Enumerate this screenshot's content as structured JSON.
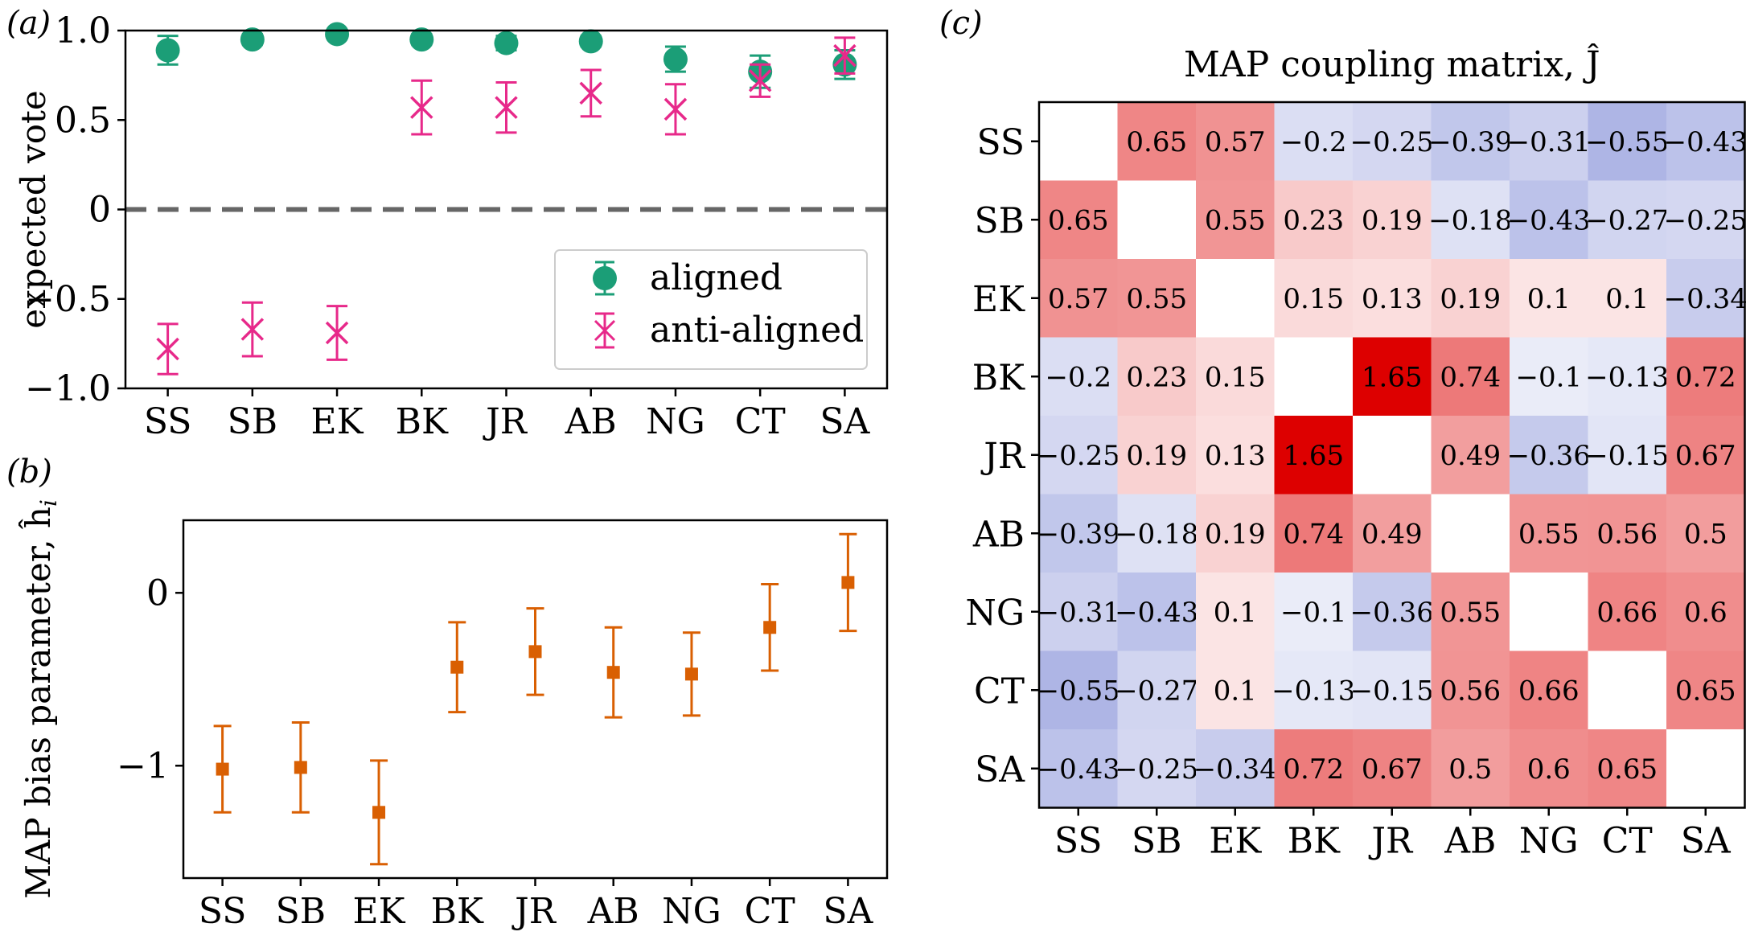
{
  "colors": {
    "aligned": "#1b9e77",
    "anti": "#e7298a",
    "bias": "#d95f02",
    "zero_line": "#666666",
    "neg": "#3b4cc0",
    "pos": "#dd0000"
  },
  "panels": {
    "a_tag": "(a)",
    "b_tag": "(b)",
    "c_tag": "(c)"
  },
  "chart_data": [
    {
      "id": "a",
      "type": "scatter",
      "title": "",
      "xlabel": "",
      "ylabel": "expected vote",
      "categories": [
        "SS",
        "SB",
        "EK",
        "BK",
        "JR",
        "AB",
        "NG",
        "CT",
        "SA"
      ],
      "ylim": [
        -1.0,
        1.0
      ],
      "yticks": [
        -1.0,
        -0.5,
        0,
        0.5,
        1.0
      ],
      "ytick_labels": [
        "−1.0",
        "−0.5",
        "0",
        "0.5",
        "1.0"
      ],
      "reference_line": 0,
      "legend": {
        "position": "right",
        "entries": [
          "aligned",
          "anti-aligned"
        ]
      },
      "series": [
        {
          "name": "aligned",
          "marker": "circle",
          "values": [
            0.89,
            0.95,
            0.98,
            0.95,
            0.93,
            0.94,
            0.84,
            0.77,
            0.81
          ],
          "err": [
            0.08,
            0.03,
            0.01,
            0.03,
            0.04,
            0.03,
            0.07,
            0.09,
            0.08
          ]
        },
        {
          "name": "anti-aligned",
          "marker": "x",
          "values": [
            -0.78,
            -0.67,
            -0.69,
            0.57,
            0.57,
            0.65,
            0.56,
            0.72,
            0.86
          ],
          "err": [
            0.14,
            0.15,
            0.15,
            0.15,
            0.14,
            0.13,
            0.14,
            0.09,
            0.1
          ]
        }
      ]
    },
    {
      "id": "b",
      "type": "scatter",
      "title": "",
      "xlabel": "",
      "ylabel": "MAP bias parameter, ĥ",
      "ylabel_sub": "i",
      "categories": [
        "SS",
        "SB",
        "EK",
        "BK",
        "JR",
        "AB",
        "NG",
        "CT",
        "SA"
      ],
      "ylim": [
        -1.65,
        0.42
      ],
      "yticks": [
        -1,
        0
      ],
      "ytick_labels": [
        "−1",
        "0"
      ],
      "series": [
        {
          "name": "MAP bias",
          "marker": "square",
          "values": [
            -1.02,
            -1.01,
            -1.27,
            -0.43,
            -0.34,
            -0.46,
            -0.47,
            -0.2,
            0.06
          ],
          "err": [
            0.25,
            0.26,
            0.3,
            0.26,
            0.25,
            0.26,
            0.24,
            0.25,
            0.28
          ]
        }
      ]
    },
    {
      "id": "c",
      "type": "heatmap",
      "title": "MAP coupling matrix, Ĵ",
      "xlabel": "",
      "ylabel": "",
      "categories": [
        "SS",
        "SB",
        "EK",
        "BK",
        "JR",
        "AB",
        "NG",
        "CT",
        "SA"
      ],
      "color_range": [
        -1.65,
        1.65
      ],
      "values": [
        [
          null,
          0.65,
          0.57,
          -0.2,
          -0.25,
          -0.39,
          -0.31,
          -0.55,
          -0.43
        ],
        [
          0.65,
          null,
          0.55,
          0.23,
          0.19,
          -0.18,
          -0.43,
          -0.27,
          -0.25
        ],
        [
          0.57,
          0.55,
          null,
          0.15,
          0.13,
          0.19,
          0.1,
          0.1,
          -0.34
        ],
        [
          -0.2,
          0.23,
          0.15,
          null,
          1.65,
          0.74,
          -0.1,
          -0.13,
          0.72
        ],
        [
          -0.25,
          0.19,
          0.13,
          1.65,
          null,
          0.49,
          -0.36,
          -0.15,
          0.67
        ],
        [
          -0.39,
          -0.18,
          0.19,
          0.74,
          0.49,
          null,
          0.55,
          0.56,
          0.5
        ],
        [
          -0.31,
          -0.43,
          0.1,
          -0.1,
          -0.36,
          0.55,
          null,
          0.66,
          0.6
        ],
        [
          -0.55,
          -0.27,
          0.1,
          -0.13,
          -0.15,
          0.56,
          0.66,
          null,
          0.65
        ],
        [
          -0.43,
          -0.25,
          -0.34,
          0.72,
          0.67,
          0.5,
          0.6,
          0.65,
          null
        ]
      ]
    }
  ]
}
